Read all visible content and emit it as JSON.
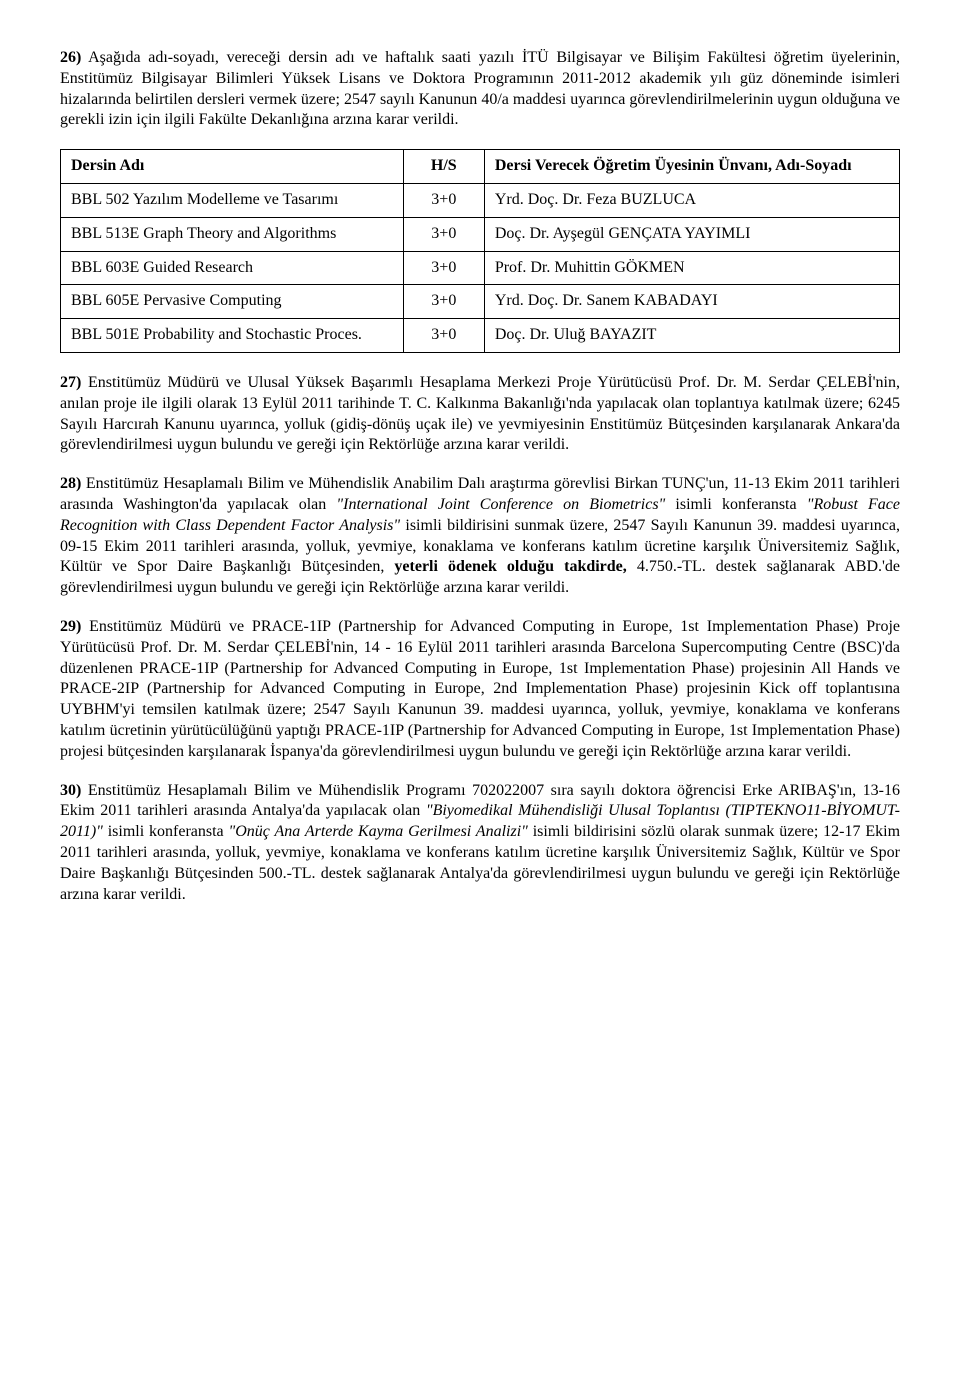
{
  "p26_html": "<span class='bold'>26)</span> Aşağıda adı-soyadı, vereceği dersin adı ve haftalık saati yazılı İTÜ Bilgisayar ve Bilişim Fakültesi öğretim üyelerinin, Enstitümüz Bilgisayar Bilimleri Yüksek Lisans ve Doktora Programının 2011-2012 akademik yılı güz döneminde isimleri hizalarında belirtilen dersleri vermek üzere; 2547 sayılı Kanunun 40/a maddesi uyarınca görevlendirilmelerinin uygun olduğuna ve gerekli izin için ilgili Fakülte Dekanlığına arzına karar verildi.",
  "table": {
    "headers": {
      "course": "Dersin Adı",
      "hs": "H/S",
      "instructor": "Dersi Verecek Öğretim Üyesinin Ünvanı, Adı-Soyadı"
    },
    "rows": [
      {
        "course": "BBL 502 Yazılım Modelleme ve Tasarımı",
        "hs": "3+0",
        "instructor": "Yrd. Doç. Dr. Feza BUZLUCA"
      },
      {
        "course": "BBL 513E Graph Theory and Algorithms",
        "hs": "3+0",
        "instructor": "Doç. Dr. Ayşegül GENÇATA YAYIMLI"
      },
      {
        "course": "BBL 603E Guided Research",
        "hs": "3+0",
        "instructor": "Prof. Dr. Muhittin GÖKMEN"
      },
      {
        "course": "BBL 605E Pervasive Computing",
        "hs": "3+0",
        "instructor": "Yrd. Doç. Dr. Sanem KABADAYI"
      },
      {
        "course": "BBL 501E Probability and Stochastic Proces.",
        "hs": "3+0",
        "instructor": "Doç. Dr. Uluğ BAYAZIT"
      }
    ]
  },
  "p27_html": "<span class='bold'>27)</span> Enstitümüz Müdürü ve Ulusal Yüksek Başarımlı Hesaplama Merkezi Proje Yürütücüsü Prof. Dr. M. Serdar ÇELEBİ'nin, anılan proje ile ilgili olarak 13 Eylül 2011 tarihinde T. C. Kalkınma Bakanlığı'nda yapılacak olan toplantıya katılmak üzere; 6245 Sayılı Harcırah Kanunu uyarınca, yolluk (gidiş-dönüş uçak ile) ve yevmiyesinin Enstitümüz Bütçesinden karşılanarak Ankara'da görevlendirilmesi uygun bulundu ve gereği için Rektörlüğe arzına karar verildi.",
  "p28_html": "<span class='bold'>28)</span> Enstitümüz Hesaplamalı Bilim ve Mühendislik Anabilim Dalı araştırma görevlisi Birkan TUNÇ'un, 11-13 Ekim 2011 tarihleri arasında Washington'da yapılacak olan <span class='italic'>\"International Joint Conference on Biometrics\"</span> isimli konferansta <span class='italic'>\"Robust Face Recognition with Class Dependent Factor Analysis\"</span> isimli bildirisini sunmak üzere, 2547 Sayılı Kanunun 39. maddesi uyarınca, 09-15 Ekim 2011 tarihleri arasında, yolluk, yevmiye, konaklama ve konferans katılım ücretine karşılık Üniversitemiz Sağlık, Kültür ve Spor Daire Başkanlığı Bütçesinden, <span class='bold'>yeterli ödenek olduğu takdirde,</span> 4.750.-TL. destek sağlanarak ABD.'de görevlendirilmesi uygun bulundu ve gereği için Rektörlüğe arzına karar verildi.",
  "p29_html": "<span class='bold'>29)</span> Enstitümüz Müdürü ve PRACE-1IP (Partnership for Advanced Computing in Europe, 1st Implementation Phase) Proje Yürütücüsü Prof. Dr. M. Serdar ÇELEBİ'nin, 14 - 16 Eylül 2011 tarihleri arasında Barcelona Supercomputing Centre (BSC)'da düzenlenen PRACE-1IP (Partnership for Advanced Computing in Europe, 1st Implementation Phase) projesinin All Hands ve PRACE-2IP (Partnership for Advanced Computing in Europe, 2nd Implementation Phase) projesinin Kick off toplantısına UYBHM'yi temsilen katılmak üzere; 2547 Sayılı Kanunun 39. maddesi uyarınca, yolluk, yevmiye, konaklama ve konferans katılım ücretinin yürütücülüğünü yaptığı PRACE-1IP (Partnership for Advanced Computing in Europe, 1st Implementation Phase) projesi bütçesinden karşılanarak İspanya'da görevlendirilmesi uygun bulundu ve gereği için Rektörlüğe arzına karar verildi.",
  "p30_html": "<span class='bold'>30)</span> Enstitümüz Hesaplamalı Bilim ve Mühendislik Programı 702022007 sıra sayılı doktora öğrencisi Erke ARIBAŞ'ın, 13-16 Ekim 2011 tarihleri arasında Antalya'da yapılacak olan <span class='italic'>\"Biyomedikal Mühendisliği Ulusal Toplantısı (TIPTEKNO11-BİYOMUT-2011)\"</span> isimli konferansta <span class='italic'>\"Onüç Ana Arterde Kayma Gerilmesi Analizi\"</span> isimli bildirisini sözlü olarak sunmak üzere; 12-17 Ekim 2011 tarihleri arasında, yolluk, yevmiye, konaklama ve konferans katılım ücretine karşılık Üniversitemiz Sağlık, Kültür ve Spor Daire Başkanlığı Bütçesinden 500.-TL. destek sağlanarak Antalya'da görevlendirilmesi uygun bulundu ve gereği için Rektörlüğe arzına karar verildi."
}
